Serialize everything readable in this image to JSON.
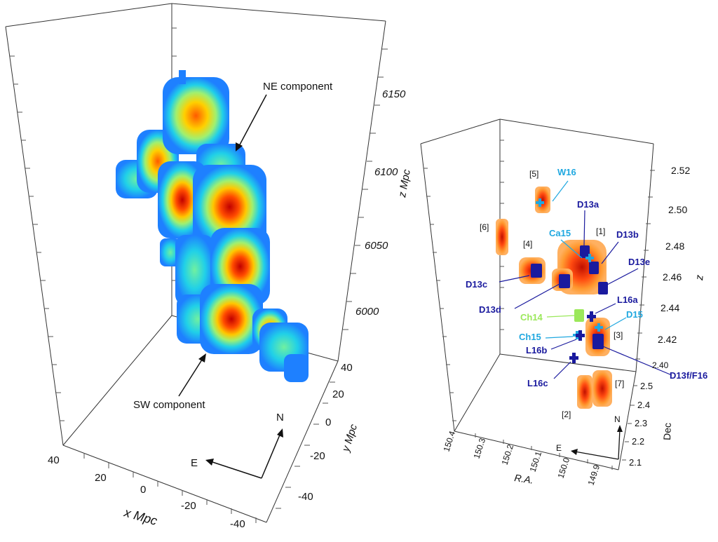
{
  "left_panel": {
    "annotations": {
      "ne": "NE component",
      "sw": "SW component"
    },
    "compass": {
      "north": "N",
      "east": "E"
    },
    "z_axis": {
      "label": "z Mpc",
      "ticks": [
        "6000",
        "6050",
        "6100",
        "6150"
      ]
    },
    "y_axis": {
      "label": "y Mpc",
      "ticks": [
        "40",
        "20",
        "0",
        "-20",
        "-40"
      ]
    },
    "x_axis": {
      "label": "x Mpc",
      "ticks": [
        "40",
        "20",
        "0",
        "-20",
        "-40"
      ]
    },
    "colors": {
      "low": "#1e90ff",
      "mid": "#20e0e0",
      "high_mid": "#ffff40",
      "high": "#ff6a00",
      "peak": "#c00000"
    }
  },
  "right_panel": {
    "z_axis": {
      "label": "z",
      "ticks": [
        "2.40",
        "2.42",
        "2.44",
        "2.46",
        "2.48",
        "2.50",
        "2.52"
      ]
    },
    "dec_axis": {
      "label": "Dec",
      "ticks": [
        "2.1",
        "2.2",
        "2.3",
        "2.4",
        "2.5"
      ]
    },
    "ra_axis": {
      "label": "R.A.",
      "ticks": [
        "150.4",
        "150.3",
        "150.2",
        "150.1",
        "150.0",
        "149.9"
      ]
    },
    "compass": {
      "north": "N",
      "east": "E"
    },
    "groups": [
      "[1]",
      "[2]",
      "[3]",
      "[4]",
      "[5]",
      "[6]",
      "[7]"
    ],
    "labels": {
      "W16": "W16",
      "D13a": "D13a",
      "Ca15": "Ca15",
      "D13b": "D13b",
      "D13e": "D13e",
      "D13c": "D13c",
      "L16a": "L16a",
      "D13d": "D13d",
      "Ch14": "Ch14",
      "D15": "D15",
      "Ch15": "Ch15",
      "L16b": "L16b",
      "L16c": "L16c",
      "D13f": "D13f/F16"
    },
    "colors": {
      "dark_blue": "#1a1a9e",
      "light_blue": "#20a8e0",
      "green": "#9be85a",
      "red": "#e03000",
      "orange": "#ff8a20"
    }
  }
}
